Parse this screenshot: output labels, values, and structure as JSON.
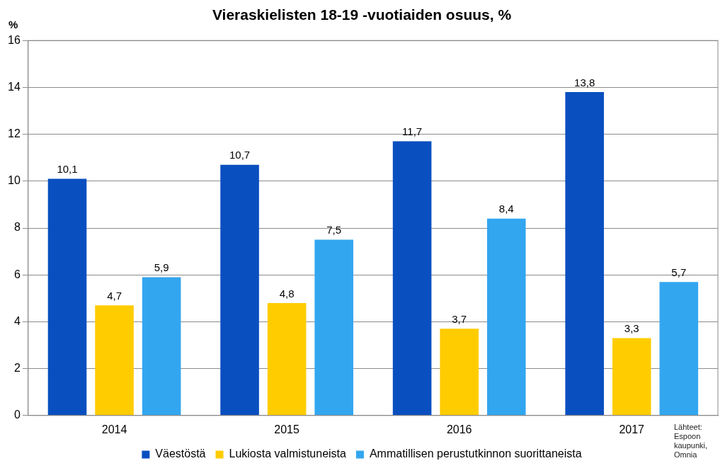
{
  "chart_data": {
    "type": "bar",
    "title": "Vieraskielisten 18-19 -vuotiaiden osuus, %",
    "y_label": "%",
    "categories": [
      "2014",
      "2015",
      "2016",
      "2017"
    ],
    "series": [
      {
        "name": "Väestöstä",
        "color": "#0a4fc0",
        "values": [
          10.1,
          10.7,
          11.7,
          13.8
        ],
        "value_labels": [
          "10,1",
          "10,7",
          "11,7",
          "13,8"
        ]
      },
      {
        "name": "Lukiosta valmistuneista",
        "color": "#ffcc00",
        "values": [
          4.7,
          4.8,
          3.7,
          3.3
        ],
        "value_labels": [
          "4,7",
          "4,8",
          "3,7",
          "3,3"
        ]
      },
      {
        "name": "Ammatillisen perustutkinnon suorittaneista",
        "color": "#33a6f0",
        "values": [
          5.9,
          7.5,
          8.4,
          5.7
        ],
        "value_labels": [
          "5,9",
          "7,5",
          "8,4",
          "5,7"
        ]
      }
    ],
    "ylim": [
      0,
      16
    ],
    "yticks": [
      0,
      2,
      4,
      6,
      8,
      10,
      12,
      14,
      16
    ],
    "grid": true,
    "legend": "bottom",
    "data_labels": true,
    "annotations": [
      {
        "text": "Lähteet: Espoon kaupunki, Omnia"
      }
    ]
  }
}
